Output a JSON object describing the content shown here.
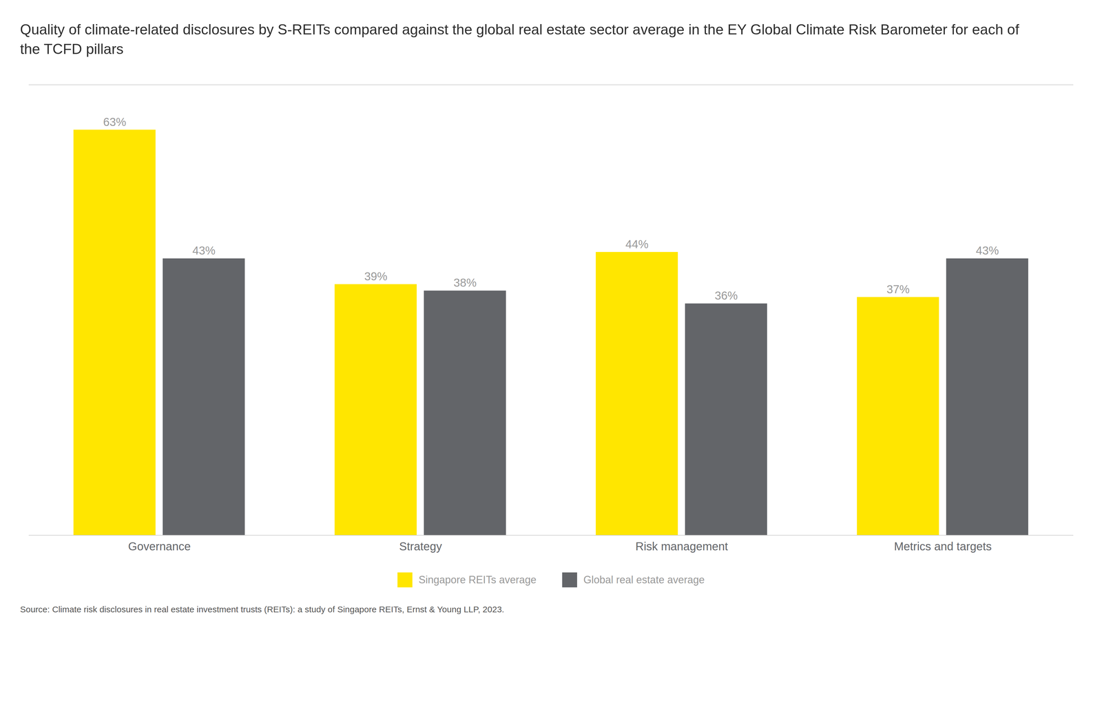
{
  "chart_data": {
    "type": "bar",
    "title": "Quality of climate-related disclosures by S-REITs compared against the global real estate sector average in the EY Global Climate Risk Barometer for each of the TCFD pillars",
    "source": "Source: Climate risk disclosures in real estate investment trusts (REITs): a study of Singapore REITs, Ernst & Young LLP, 2023.",
    "categories": [
      "Governance",
      "Strategy",
      "Risk management",
      "Metrics and targets"
    ],
    "series": [
      {
        "name": "Singapore REITs average",
        "color": "#FFE600",
        "values": [
          63,
          39,
          44,
          37
        ],
        "value_labels": [
          "63%",
          "39%",
          "44%",
          "37%"
        ]
      },
      {
        "name": "Global real estate average",
        "color": "#636569",
        "values": [
          43,
          38,
          36,
          43
        ],
        "value_labels": [
          "43%",
          "38%",
          "36%",
          "43%"
        ]
      }
    ],
    "ylim": [
      0,
      70
    ],
    "grid": false,
    "legend": "bottom",
    "data_labels": true,
    "tick_labels": "x"
  }
}
